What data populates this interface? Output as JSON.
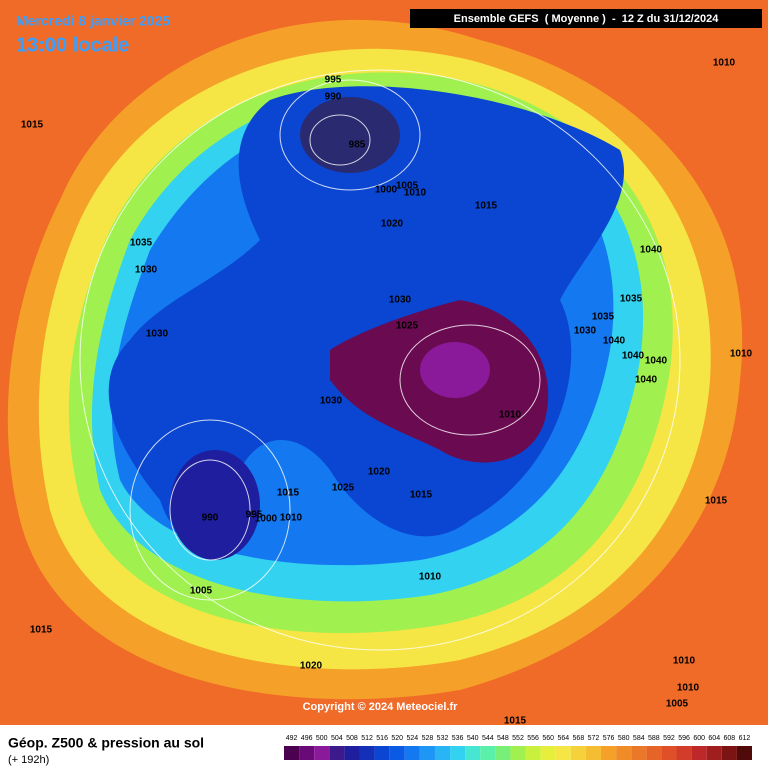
{
  "header": {
    "date": "Mercredi 8 janvier 2025",
    "time": "13:00 locale",
    "run": "Ensemble GEFS  ( Moyenne )  -  12 Z du 31/12/2024"
  },
  "footer": {
    "title": "Géop. Z500 & pression au sol",
    "range": "(+ 192h)",
    "copyright": "Copyright © 2024 Meteociel.fr"
  },
  "isobars": {
    "labels": [
      "995",
      "990",
      "985",
      "1010",
      "1015",
      "1000",
      "1005",
      "1010",
      "1015",
      "1020",
      "1035",
      "1030",
      "1040",
      "1030",
      "1035",
      "1035",
      "1025",
      "1030",
      "1040",
      "1030",
      "1040",
      "1040",
      "1010",
      "1040",
      "1030",
      "1010",
      "1020",
      "1015",
      "1025",
      "1015",
      "990",
      "995",
      "1000",
      "1010",
      "1015",
      "1005",
      "1010",
      "1015",
      "1020",
      "1010",
      "1010",
      "1005",
      "1015"
    ]
  },
  "legend": {
    "labels": [
      "492",
      "496",
      "500",
      "504",
      "508",
      "512",
      "516",
      "520",
      "524",
      "528",
      "532",
      "536",
      "540",
      "544",
      "548",
      "552",
      "556",
      "560",
      "564",
      "568",
      "572",
      "576",
      "580",
      "584",
      "588",
      "592",
      "596",
      "600",
      "604",
      "608",
      "612"
    ],
    "colors": [
      "#4b0050",
      "#6a0a78",
      "#8a1a9a",
      "#3c1a8c",
      "#1e1e9e",
      "#1430b8",
      "#0a46d2",
      "#0a5ae6",
      "#1478f0",
      "#1e96f5",
      "#28b4f5",
      "#32d2f0",
      "#46e6d2",
      "#5af0aa",
      "#78f078",
      "#a0f050",
      "#c8f03c",
      "#e6f03c",
      "#f5e646",
      "#f5d23c",
      "#f5be32",
      "#f5a028",
      "#f08c28",
      "#eb7828",
      "#e66428",
      "#e05028",
      "#d23c28",
      "#be2828",
      "#a01e1e",
      "#7d1414",
      "#500a0a"
    ]
  }
}
